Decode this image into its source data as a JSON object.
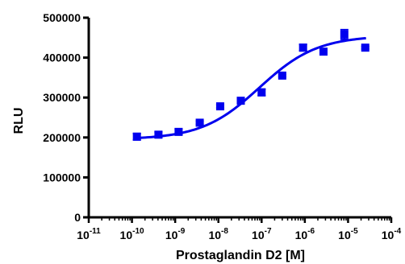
{
  "chart_data": {
    "type": "scatter",
    "title": "",
    "xlabel": "Prostaglandin D2 [M]",
    "ylabel": "RLU",
    "x_scale": "log",
    "xlim": [
      1e-11,
      0.0001
    ],
    "ylim": [
      0,
      500000
    ],
    "grid": false,
    "legend": "none",
    "x_ticks": [
      {
        "value": 1e-11,
        "base": "10",
        "exp": "-11"
      },
      {
        "value": 1e-10,
        "base": "10",
        "exp": "-10"
      },
      {
        "value": 1e-09,
        "base": "10",
        "exp": "-9"
      },
      {
        "value": 1e-08,
        "base": "10",
        "exp": "-8"
      },
      {
        "value": 1e-07,
        "base": "10",
        "exp": "-7"
      },
      {
        "value": 1e-06,
        "base": "10",
        "exp": "-6"
      },
      {
        "value": 1e-05,
        "base": "10",
        "exp": "-5"
      },
      {
        "value": 0.0001,
        "base": "10",
        "exp": "-4"
      }
    ],
    "y_ticks": [
      {
        "value": 0,
        "label": "0"
      },
      {
        "value": 100000,
        "label": "100000"
      },
      {
        "value": 200000,
        "label": "200000"
      },
      {
        "value": 300000,
        "label": "300000"
      },
      {
        "value": 400000,
        "label": "400000"
      },
      {
        "value": 500000,
        "label": "500000"
      }
    ],
    "series": [
      {
        "color": "#0000ee",
        "marker": "square",
        "points": [
          {
            "x": 1.3e-10,
            "y": 202000,
            "err": 8000
          },
          {
            "x": 4.1e-10,
            "y": 207000,
            "err": 7000
          },
          {
            "x": 1.2e-09,
            "y": 214000,
            "err": 7000
          },
          {
            "x": 3.7e-09,
            "y": 237000,
            "err": 4000
          },
          {
            "x": 1.1e-08,
            "y": 278000,
            "err": 4000
          },
          {
            "x": 3.3e-08,
            "y": 292000,
            "err": 3000
          },
          {
            "x": 1e-07,
            "y": 313000,
            "err": 8000
          },
          {
            "x": 3e-07,
            "y": 355000,
            "err": 3000
          },
          {
            "x": 9.1e-07,
            "y": 425000,
            "err": 8000
          },
          {
            "x": 2.7e-06,
            "y": 415000,
            "err": 3000
          },
          {
            "x": 8.2e-06,
            "y": 458000,
            "err": 12000
          },
          {
            "x": 2.5e-05,
            "y": 425000,
            "err": 3000
          }
        ],
        "fit": {
          "model": "four-parameter logistic",
          "bottom": 195000,
          "top": 455000,
          "logEC50": -7.05,
          "hill": 0.65,
          "x_range": [
            1.1e-10,
            2.6e-05
          ]
        }
      }
    ]
  }
}
